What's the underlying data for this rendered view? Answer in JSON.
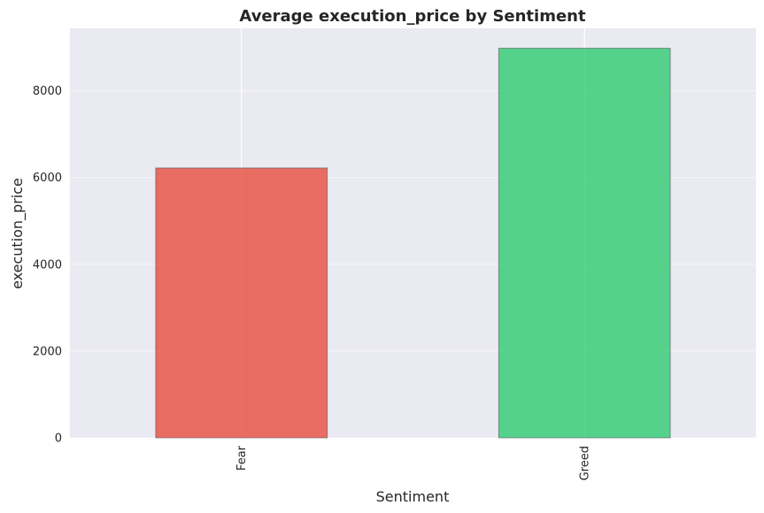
{
  "chart_data": {
    "type": "bar",
    "title": "Average execution_price by Sentiment",
    "xlabel": "Sentiment",
    "ylabel": "execution_price",
    "categories": [
      "Fear",
      "Greed"
    ],
    "values": [
      6220,
      8980
    ],
    "colors": [
      "#e74c3c",
      "#2ecc71"
    ],
    "ylim": [
      0,
      9440
    ],
    "yticks": [
      0,
      2000,
      4000,
      6000,
      8000
    ],
    "grid": true,
    "background": "#eaeaf2",
    "gridline_color": "#ffffff"
  }
}
